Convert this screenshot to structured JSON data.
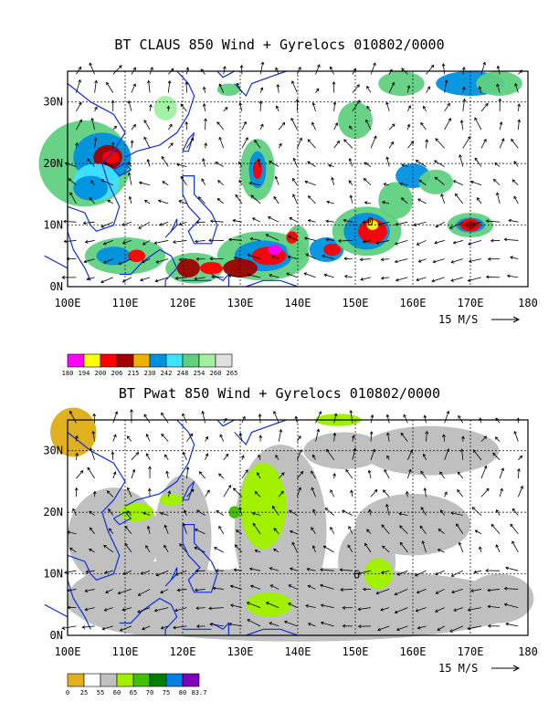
{
  "panels": [
    {
      "title": "BT CLAUS 850 Wind + Gyrelocs 010802/0000",
      "lat_labels": [
        "0N",
        "10N",
        "20N",
        "30N"
      ],
      "lon_labels": [
        "100E",
        "110E",
        "120E",
        "130E",
        "140E",
        "150E",
        "160E",
        "170E",
        "180"
      ],
      "vector_ref": "15 M/S",
      "legend_values": [
        "180",
        "194",
        "200",
        "206",
        "215",
        "230",
        "242",
        "248",
        "254",
        "260",
        "265"
      ],
      "legend_colors": [
        "#ff00ff",
        "#ffff00",
        "#ff0000",
        "#a00000",
        "#f0b000",
        "#0090e0",
        "#40e0ff",
        "#60d080",
        "#a0f0a0",
        "#e0e0e0"
      ],
      "gyre_marker": "0"
    },
    {
      "title": "BT Pwat 850 Wind + Gyrelocs 010802/0000",
      "lat_labels": [
        "0N",
        "10N",
        "20N",
        "30N"
      ],
      "lon_labels": [
        "100E",
        "110E",
        "120E",
        "130E",
        "140E",
        "150E",
        "160E",
        "170E",
        "180"
      ],
      "vector_ref": "15 M/S",
      "legend_values": [
        "0",
        "25",
        "55",
        "60",
        "65",
        "70",
        "75",
        "80",
        "83.7"
      ],
      "legend_colors": [
        "#e0b020",
        "#ffffff",
        "#c0c0c0",
        "#a0f000",
        "#40c000",
        "#008000",
        "#0080e0",
        "#8000c0"
      ],
      "gyre_marker": "6"
    }
  ]
}
